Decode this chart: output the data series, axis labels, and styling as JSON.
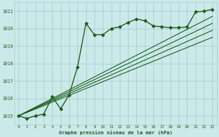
{
  "bg_color": "#cce9e9",
  "grid_color": "#99cccc",
  "line_color": "#1a5c1a",
  "text_color": "#1a5c1a",
  "xlabel": "Graphe pression niveau de la mer (hPa)",
  "ylim": [
    1014.5,
    1021.5
  ],
  "xlim": [
    -0.5,
    23.5
  ],
  "yticks": [
    1015,
    1016,
    1017,
    1018,
    1019,
    1020,
    1021
  ],
  "xticks": [
    0,
    1,
    2,
    3,
    4,
    5,
    6,
    7,
    8,
    9,
    10,
    11,
    12,
    13,
    14,
    15,
    16,
    17,
    18,
    19,
    20,
    21,
    22,
    23
  ],
  "main_series": {
    "x": [
      0,
      1,
      2,
      3,
      4,
      5,
      6,
      7,
      8,
      9,
      10,
      11,
      12,
      13,
      14,
      15,
      16,
      17,
      18,
      19,
      20,
      21,
      22,
      23
    ],
    "y": [
      1015.0,
      1014.85,
      1015.0,
      1015.1,
      1016.1,
      1015.4,
      1016.2,
      1017.8,
      1020.3,
      1019.65,
      1019.65,
      1020.0,
      1020.1,
      1020.35,
      1020.55,
      1020.45,
      1020.15,
      1020.1,
      1020.05,
      1020.05,
      1020.1,
      1020.95,
      1021.0,
      1021.1
    ],
    "marker": "D",
    "markersize": 2.5,
    "linewidth": 1.0
  },
  "linear_series": [
    {
      "x0": 0,
      "y0": 1015.0,
      "x1": 23,
      "y1": 1019.5
    },
    {
      "x0": 0,
      "y0": 1015.0,
      "x1": 23,
      "y1": 1019.9
    },
    {
      "x0": 0,
      "y0": 1015.0,
      "x1": 23,
      "y1": 1020.3
    },
    {
      "x0": 0,
      "y0": 1015.0,
      "x1": 23,
      "y1": 1020.7
    }
  ],
  "linear_linewidth": 0.8
}
